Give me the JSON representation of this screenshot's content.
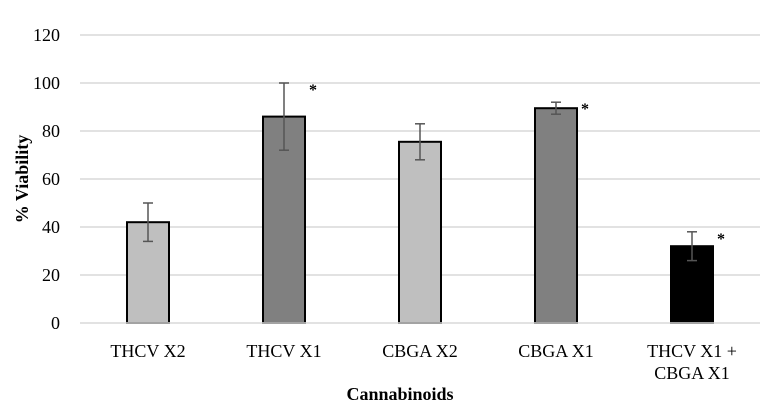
{
  "chart_data": {
    "type": "bar",
    "title": "",
    "xlabel": "Cannabinoids",
    "ylabel": "% Viability",
    "ylim": [
      0,
      120
    ],
    "yticks": [
      0,
      20,
      40,
      60,
      80,
      100,
      120
    ],
    "grid": true,
    "categories": [
      [
        "THCV X2"
      ],
      [
        "THCV X1"
      ],
      [
        "CBGA X2"
      ],
      [
        "CBGA X1"
      ],
      [
        "THCV X1 +",
        "CBGA X1"
      ]
    ],
    "values": [
      42,
      86,
      75.5,
      89.5,
      32
    ],
    "errors": [
      8,
      14,
      7.5,
      2.5,
      6
    ],
    "bar_colors": [
      "#bfbfbf",
      "#808080",
      "#bfbfbf",
      "#808080",
      "#000000"
    ],
    "annotations": [
      "",
      "*",
      "",
      "*",
      "*"
    ]
  }
}
